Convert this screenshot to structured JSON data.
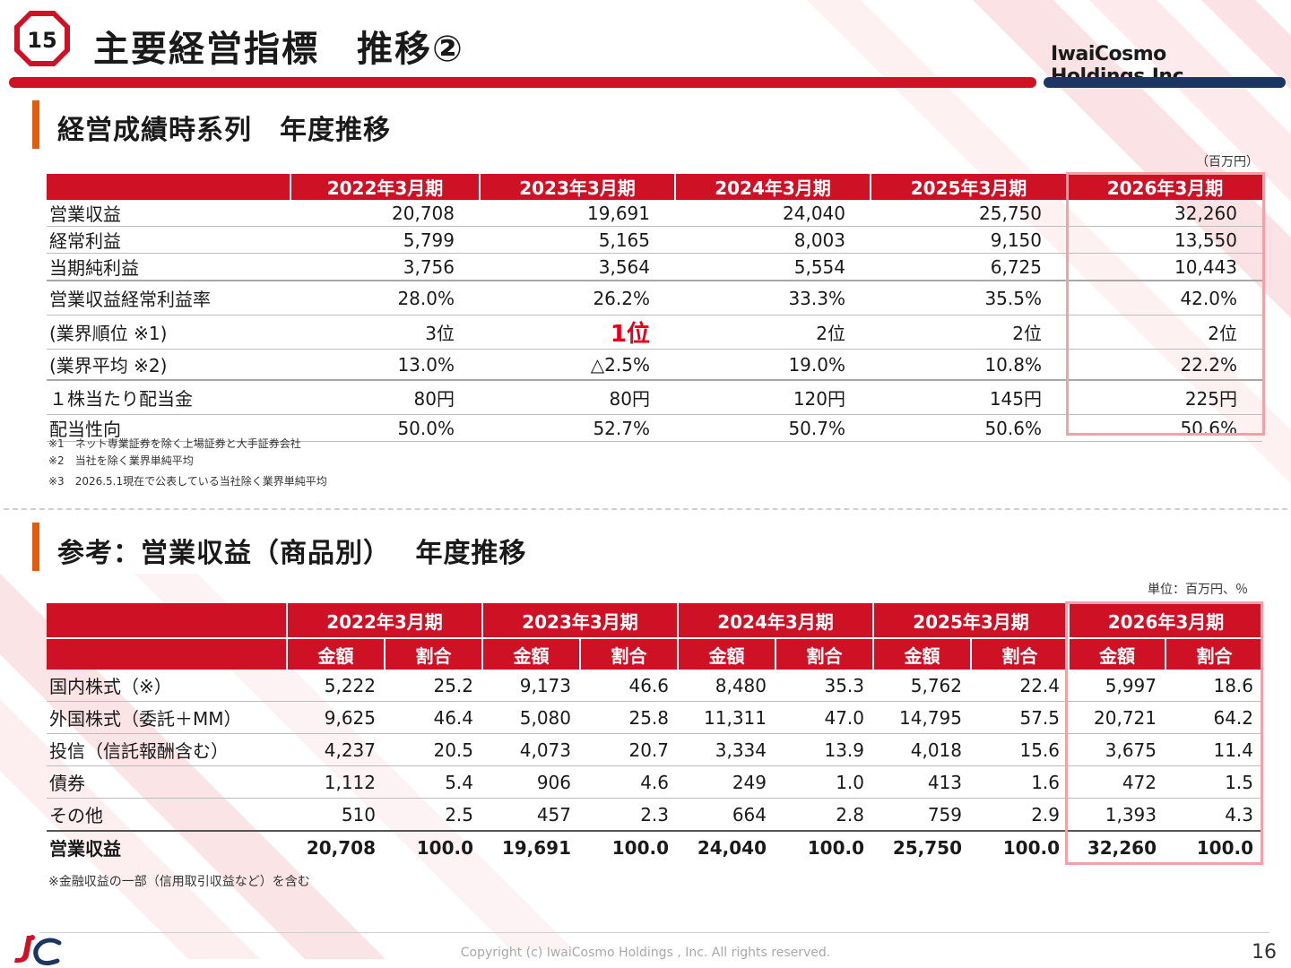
{
  "header": {
    "slide_number": "15",
    "title": "主要経営指標　推移②",
    "logo_text": "IwaiCosmo Holdings,Inc."
  },
  "section1": {
    "title": "経営成績時系列　年度推移",
    "unit": "（百万円）",
    "columns": [
      "2022年3月期",
      "2023年3月期",
      "2024年3月期",
      "2025年3月期",
      "2026年3月期"
    ],
    "rows": [
      {
        "label": "営業収益",
        "values": [
          "20,708",
          "19,691",
          "24,040",
          "25,750",
          "32,260"
        ]
      },
      {
        "label": "経常利益",
        "values": [
          "5,799",
          "5,165",
          "8,003",
          "9,150",
          "13,550"
        ]
      },
      {
        "label": "当期純利益",
        "values": [
          "3,756",
          "3,564",
          "5,554",
          "6,725",
          "10,443"
        ]
      },
      {
        "label": "営業収益経常利益率",
        "values": [
          "28.0%",
          "26.2%",
          "33.3%",
          "35.5%",
          "42.0%"
        ]
      },
      {
        "label": "(業界順位 ※1)",
        "values": [
          "3位",
          "1位",
          "2位",
          "2位",
          "2位"
        ]
      },
      {
        "label": "(業界平均 ※2)",
        "values": [
          "13.0%",
          "△2.5%",
          "19.0%",
          "10.8%",
          "22.2%"
        ]
      },
      {
        "label": "１株当たり配当金",
        "values": [
          "80円",
          "80円",
          "120円",
          "145円",
          "225円"
        ]
      },
      {
        "label": "配当性向",
        "values": [
          "50.0%",
          "52.7%",
          "50.7%",
          "50.6%",
          "50.6%"
        ]
      }
    ],
    "notes": [
      "※1　ネット専業証券を除く上場証券と大手証券会社",
      "※2　当社を除く業界単純平均",
      "※3　2026.5.1現在で公表している当社除く業界単純平均"
    ]
  },
  "section2": {
    "title": "参考：営業収益（商品別）　 年度推移",
    "unit": "単位：百万円、％",
    "columns": [
      "2022年3月期",
      "2023年3月期",
      "2024年3月期",
      "2025年3月期",
      "2026年3月期"
    ],
    "sub_columns": [
      "金額",
      "割合"
    ],
    "rows": [
      {
        "label": "国内株式（※）",
        "values": [
          "5,222",
          "25.2",
          "9,173",
          "46.6",
          "8,480",
          "35.3",
          "5,762",
          "22.4",
          "5,997",
          "18.6"
        ]
      },
      {
        "label": "外国株式（委託＋MM）",
        "values": [
          "9,625",
          "46.4",
          "5,080",
          "25.8",
          "11,311",
          "47.0",
          "14,795",
          "57.5",
          "20,721",
          "64.2"
        ]
      },
      {
        "label": "投信（信託報酬含む）",
        "values": [
          "4,237",
          "20.5",
          "4,073",
          "20.7",
          "3,334",
          "13.9",
          "4,018",
          "15.6",
          "3,675",
          "11.4"
        ]
      },
      {
        "label": "債券",
        "values": [
          "1,112",
          "5.4",
          "906",
          "4.6",
          "249",
          "1.0",
          "413",
          "1.6",
          "472",
          "1.5"
        ]
      },
      {
        "label": "その他",
        "values": [
          "510",
          "2.5",
          "457",
          "2.3",
          "664",
          "2.8",
          "759",
          "2.9",
          "1,393",
          "4.3"
        ]
      }
    ],
    "total": {
      "label": "営業収益",
      "values": [
        "20,708",
        "100.0",
        "19,691",
        "100.0",
        "24,040",
        "100.0",
        "25,750",
        "100.0",
        "32,260",
        "100.0"
      ]
    },
    "note": "※金融収益の一部（信用取引収益など）を含む"
  },
  "footer": {
    "copyright": "Copyright (c) IwaiCosmo Holdings , Inc. All rights reserved.",
    "page_number": "16"
  },
  "colors": {
    "accent_red": "#cf1126",
    "navy": "#1c3664",
    "section_marker": "#e35b0d",
    "highlight_box": "#f4a0a8",
    "rank_highlight": "#e4001b"
  }
}
